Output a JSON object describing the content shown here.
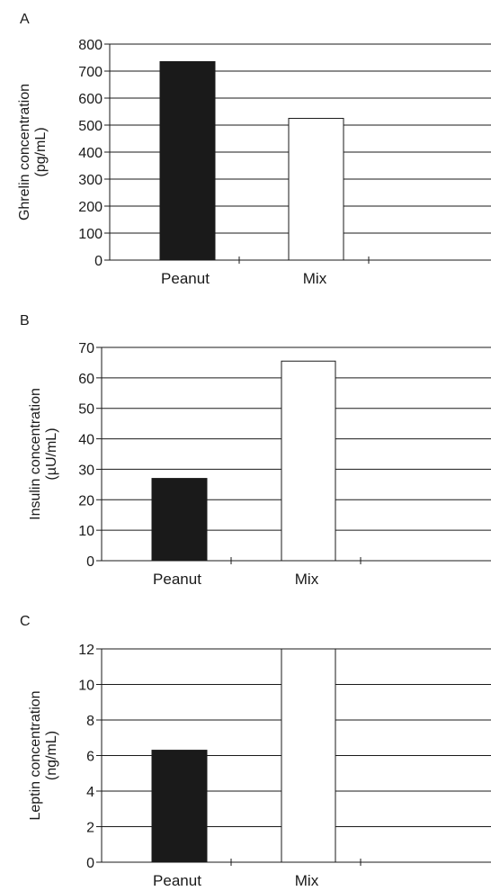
{
  "chart_data": [
    {
      "type": "bar",
      "panel": "A",
      "categories": [
        "Peanut",
        "Mix"
      ],
      "values": [
        735,
        525
      ],
      "ylabel_lines": [
        "Ghrelin concentration",
        "(pg/mL)"
      ],
      "ylim": [
        0,
        800
      ],
      "yticks": [
        0,
        100,
        200,
        300,
        400,
        500,
        600,
        700,
        800
      ],
      "grid": true,
      "bar_colors": [
        "#1a1a1a",
        "#ffffff"
      ]
    },
    {
      "type": "bar",
      "panel": "B",
      "categories": [
        "Peanut",
        "Mix"
      ],
      "values": [
        27,
        65.5
      ],
      "ylabel_lines": [
        "Insulin concentration",
        "(µU/mL)"
      ],
      "ylim": [
        0,
        70
      ],
      "yticks": [
        0,
        10,
        20,
        30,
        40,
        50,
        60,
        70
      ],
      "grid": true,
      "bar_colors": [
        "#1a1a1a",
        "#ffffff"
      ]
    },
    {
      "type": "bar",
      "panel": "C",
      "categories": [
        "Peanut",
        "Mix"
      ],
      "values": [
        6.3,
        12.0
      ],
      "ylabel_lines": [
        "Leptin concentration",
        "(ng/mL)"
      ],
      "ylim": [
        0,
        12
      ],
      "yticks": [
        0,
        2,
        4,
        6,
        8,
        10,
        12
      ],
      "grid": true,
      "bar_colors": [
        "#1a1a1a",
        "#ffffff"
      ]
    }
  ]
}
